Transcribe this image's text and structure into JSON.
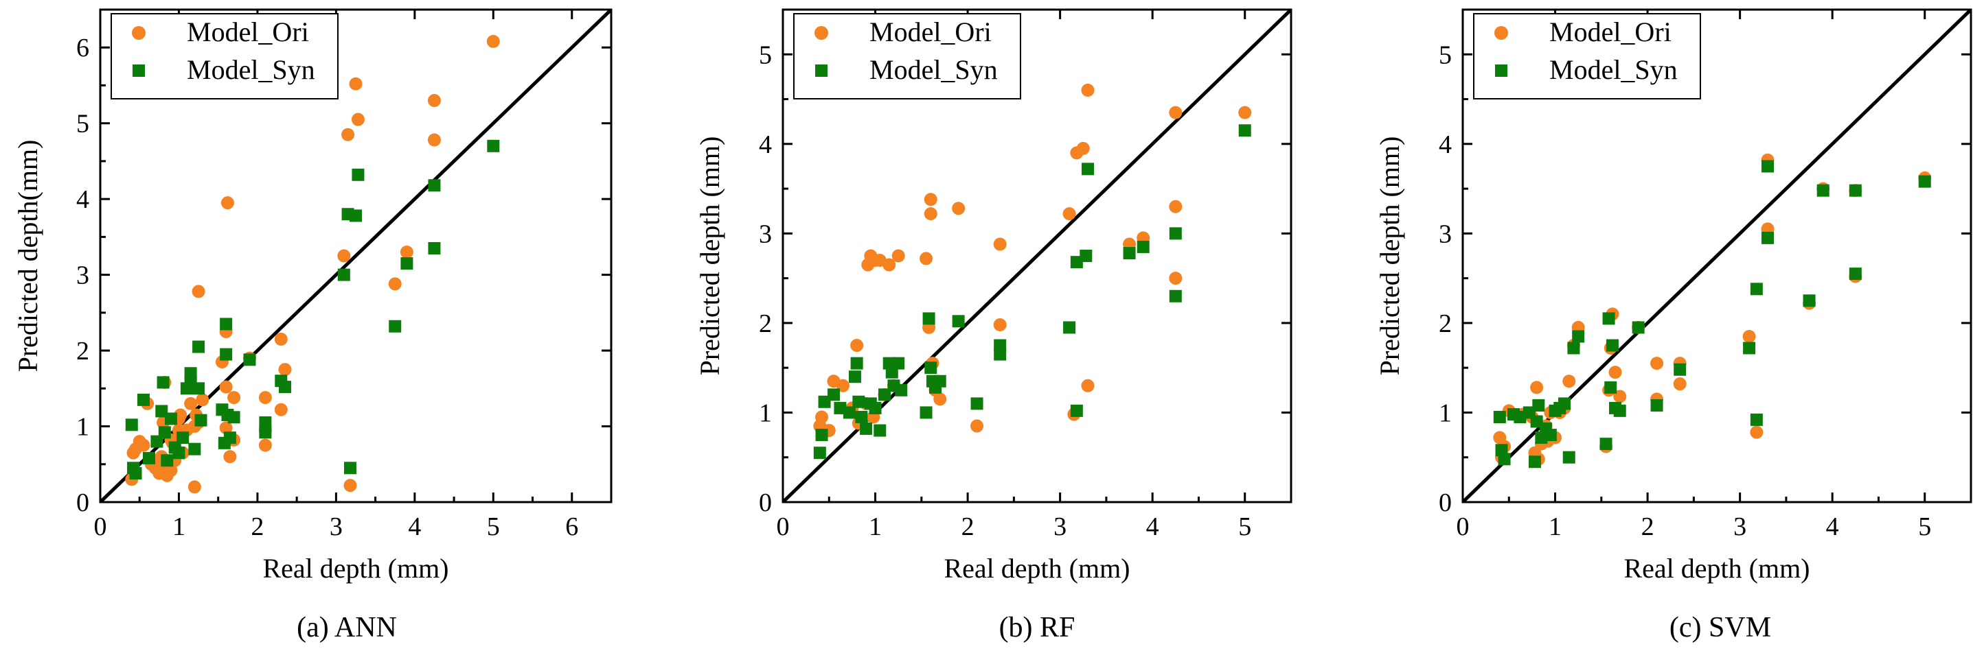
{
  "colors": {
    "ori": "#F58220",
    "syn": "#0B7D0B",
    "axis": "#000000",
    "background": "#ffffff"
  },
  "chart_data": [
    {
      "type": "scatter",
      "caption": "(a) ANN",
      "xlabel": "Real depth (mm)",
      "ylabel": "Predicted depth(mm)",
      "xlim": [
        0,
        6.5
      ],
      "ylim": [
        0,
        6.5
      ],
      "xticks": [
        0,
        1,
        2,
        3,
        4,
        5,
        6
      ],
      "yticks": [
        0,
        1,
        2,
        3,
        4,
        5,
        6
      ],
      "xtick_labels": [
        "0",
        "1",
        "2",
        "3",
        "4",
        "5",
        "6"
      ],
      "ytick_labels": [
        "0",
        "1",
        "2",
        "3",
        "4",
        "5",
        "6"
      ],
      "reference_line": "y = x",
      "legend": [
        "Model_Ori",
        "Model_Syn"
      ],
      "series": [
        {
          "name": "Model_Ori",
          "marker": "circle",
          "x": [
            0.4,
            0.42,
            0.45,
            0.5,
            0.55,
            0.6,
            0.65,
            0.7,
            0.72,
            0.75,
            0.78,
            0.8,
            0.8,
            0.82,
            0.85,
            0.85,
            0.88,
            0.9,
            0.9,
            0.92,
            0.95,
            1.0,
            1.0,
            1.02,
            1.05,
            1.1,
            1.15,
            1.15,
            1.2,
            1.2,
            1.22,
            1.25,
            1.25,
            1.3,
            1.55,
            1.6,
            1.6,
            1.6,
            1.62,
            1.65,
            1.7,
            1.7,
            1.9,
            2.1,
            2.1,
            2.1,
            2.3,
            2.3,
            2.35,
            3.1,
            3.15,
            3.18,
            3.25,
            3.28,
            3.75,
            3.9,
            4.25,
            4.25,
            5.0
          ],
          "y": [
            0.3,
            0.65,
            0.7,
            0.8,
            0.75,
            1.3,
            0.5,
            0.45,
            0.55,
            0.38,
            0.6,
            0.45,
            1.05,
            1.58,
            0.35,
            0.4,
            0.45,
            0.42,
            0.82,
            0.78,
            0.55,
            0.95,
            1.1,
            1.15,
            0.65,
            0.95,
            1.3,
            1.55,
            0.2,
            1.0,
            1.15,
            1.05,
            2.78,
            1.35,
            1.85,
            0.98,
            1.52,
            2.25,
            3.95,
            0.6,
            1.38,
            0.82,
            1.9,
            1.38,
            0.95,
            0.75,
            1.22,
            2.15,
            1.75,
            3.25,
            4.85,
            0.22,
            5.52,
            5.05,
            2.88,
            3.3,
            5.3,
            4.78,
            6.08
          ]
        },
        {
          "name": "Model_Syn",
          "marker": "square",
          "x": [
            0.4,
            0.42,
            0.45,
            0.55,
            0.62,
            0.72,
            0.78,
            0.8,
            0.82,
            0.85,
            0.9,
            0.95,
            1.0,
            1.05,
            1.1,
            1.15,
            1.15,
            1.2,
            1.25,
            1.25,
            1.28,
            1.55,
            1.58,
            1.6,
            1.6,
            1.62,
            1.65,
            1.7,
            1.9,
            2.1,
            2.1,
            2.3,
            2.35,
            3.1,
            3.15,
            3.18,
            3.25,
            3.28,
            3.75,
            3.9,
            4.25,
            4.25,
            5.0
          ],
          "y": [
            1.02,
            0.45,
            0.38,
            1.35,
            0.58,
            0.8,
            1.2,
            1.58,
            0.92,
            0.55,
            1.1,
            0.72,
            0.65,
            0.85,
            1.5,
            1.6,
            1.7,
            0.7,
            1.5,
            2.05,
            1.08,
            1.22,
            0.78,
            1.95,
            2.35,
            1.15,
            0.85,
            1.12,
            1.88,
            0.92,
            1.05,
            1.6,
            1.52,
            3.0,
            3.8,
            0.45,
            3.78,
            4.32,
            2.32,
            3.15,
            3.35,
            4.18,
            4.7
          ]
        }
      ]
    },
    {
      "type": "scatter",
      "caption": "(b) RF",
      "xlabel": "Real depth (mm)",
      "ylabel": "Predicted depth (mm)",
      "xlim": [
        0,
        5.5
      ],
      "ylim": [
        0,
        5.5
      ],
      "xticks": [
        0,
        1,
        2,
        3,
        4,
        5
      ],
      "yticks": [
        0,
        1,
        2,
        3,
        4,
        5
      ],
      "xtick_labels": [
        "0",
        "1",
        "2",
        "3",
        "4",
        "5"
      ],
      "ytick_labels": [
        "0",
        "1",
        "2",
        "3",
        "4",
        "5"
      ],
      "reference_line": "y = x",
      "legend": [
        "Model_Ori",
        "Model_Syn"
      ],
      "series": [
        {
          "name": "Model_Ori",
          "marker": "circle",
          "x": [
            0.4,
            0.42,
            0.45,
            0.5,
            0.55,
            0.65,
            0.75,
            0.8,
            0.82,
            0.85,
            0.9,
            0.92,
            0.95,
            0.98,
            1.0,
            1.05,
            1.1,
            1.15,
            1.2,
            1.25,
            1.55,
            1.58,
            1.6,
            1.6,
            1.62,
            1.65,
            1.7,
            1.9,
            2.1,
            2.35,
            2.35,
            3.1,
            3.15,
            3.18,
            3.25,
            3.3,
            3.3,
            3.75,
            3.9,
            4.25,
            4.25,
            4.25,
            5.0
          ],
          "y": [
            0.85,
            0.95,
            0.78,
            0.8,
            1.35,
            1.3,
            1.05,
            1.75,
            0.88,
            0.9,
            1.1,
            2.65,
            2.75,
            0.95,
            2.7,
            2.7,
            1.2,
            2.65,
            1.3,
            2.75,
            2.72,
            1.95,
            3.38,
            3.22,
            1.55,
            1.25,
            1.15,
            3.28,
            0.85,
            2.88,
            1.98,
            3.22,
            0.98,
            3.9,
            3.95,
            4.6,
            1.3,
            2.88,
            2.95,
            2.5,
            4.35,
            3.3,
            4.35
          ]
        },
        {
          "name": "Model_Syn",
          "marker": "square",
          "x": [
            0.4,
            0.42,
            0.45,
            0.55,
            0.62,
            0.72,
            0.78,
            0.8,
            0.82,
            0.85,
            0.9,
            0.95,
            1.0,
            1.05,
            1.1,
            1.15,
            1.18,
            1.2,
            1.25,
            1.28,
            1.55,
            1.58,
            1.6,
            1.62,
            1.65,
            1.7,
            1.9,
            2.1,
            2.35,
            2.35,
            3.1,
            3.18,
            3.18,
            3.28,
            3.3,
            3.75,
            3.9,
            4.25,
            4.25,
            5.0
          ],
          "y": [
            0.55,
            0.75,
            1.12,
            1.2,
            1.05,
            1.0,
            1.4,
            1.55,
            1.12,
            0.95,
            0.82,
            1.1,
            1.05,
            0.8,
            1.2,
            1.55,
            1.45,
            1.3,
            1.55,
            1.25,
            1.0,
            2.05,
            1.5,
            1.35,
            1.28,
            1.35,
            2.02,
            1.1,
            1.75,
            1.65,
            1.95,
            1.02,
            2.68,
            2.75,
            3.72,
            2.78,
            2.85,
            2.3,
            3.0,
            4.15
          ]
        }
      ]
    },
    {
      "type": "scatter",
      "caption": "(c) SVM",
      "xlabel": "Real depth (mm)",
      "ylabel": "Predicted depth (mm)",
      "xlim": [
        0,
        5.5
      ],
      "ylim": [
        0,
        5.5
      ],
      "xticks": [
        0,
        1,
        2,
        3,
        4,
        5
      ],
      "yticks": [
        0,
        1,
        2,
        3,
        4,
        5
      ],
      "xtick_labels": [
        "0",
        "1",
        "2",
        "3",
        "4",
        "5"
      ],
      "ytick_labels": [
        "0",
        "1",
        "2",
        "3",
        "4",
        "5"
      ],
      "reference_line": "y = x",
      "legend": [
        "Model_Ori",
        "Model_Syn"
      ],
      "series": [
        {
          "name": "Model_Ori",
          "marker": "circle",
          "x": [
            0.4,
            0.42,
            0.45,
            0.5,
            0.55,
            0.65,
            0.75,
            0.78,
            0.8,
            0.82,
            0.85,
            0.9,
            0.92,
            0.95,
            1.0,
            1.05,
            1.1,
            1.15,
            1.2,
            1.25,
            1.55,
            1.58,
            1.6,
            1.62,
            1.65,
            1.7,
            1.9,
            2.1,
            2.1,
            2.35,
            2.35,
            3.1,
            3.18,
            3.3,
            3.3,
            3.75,
            3.9,
            4.25,
            4.25,
            5.0
          ],
          "y": [
            0.72,
            0.5,
            0.62,
            1.02,
            0.98,
            0.98,
            0.95,
            0.55,
            1.28,
            0.48,
            0.65,
            0.85,
            0.68,
            1.0,
            0.72,
            1.0,
            1.05,
            1.35,
            1.75,
            1.95,
            0.62,
            1.25,
            1.72,
            2.1,
            1.45,
            1.18,
            1.95,
            1.15,
            1.55,
            1.32,
            1.55,
            1.85,
            0.78,
            3.05,
            3.82,
            2.22,
            3.5,
            2.52,
            3.48,
            3.62
          ]
        },
        {
          "name": "Model_Syn",
          "marker": "square",
          "x": [
            0.4,
            0.42,
            0.45,
            0.55,
            0.62,
            0.72,
            0.78,
            0.8,
            0.82,
            0.85,
            0.9,
            0.95,
            1.0,
            1.05,
            1.1,
            1.15,
            1.2,
            1.25,
            1.55,
            1.58,
            1.6,
            1.62,
            1.65,
            1.7,
            1.9,
            2.1,
            2.35,
            3.1,
            3.18,
            3.18,
            3.3,
            3.3,
            3.75,
            3.9,
            4.25,
            4.25,
            5.0
          ],
          "y": [
            0.95,
            0.58,
            0.48,
            0.98,
            0.95,
            1.0,
            0.45,
            0.9,
            1.08,
            0.72,
            0.82,
            0.75,
            1.02,
            1.05,
            1.1,
            0.5,
            1.72,
            1.85,
            0.65,
            2.05,
            1.28,
            1.75,
            1.05,
            1.02,
            1.95,
            1.08,
            1.48,
            1.72,
            0.92,
            2.38,
            2.95,
            3.75,
            2.25,
            3.48,
            3.48,
            2.55,
            3.58
          ]
        }
      ]
    }
  ]
}
